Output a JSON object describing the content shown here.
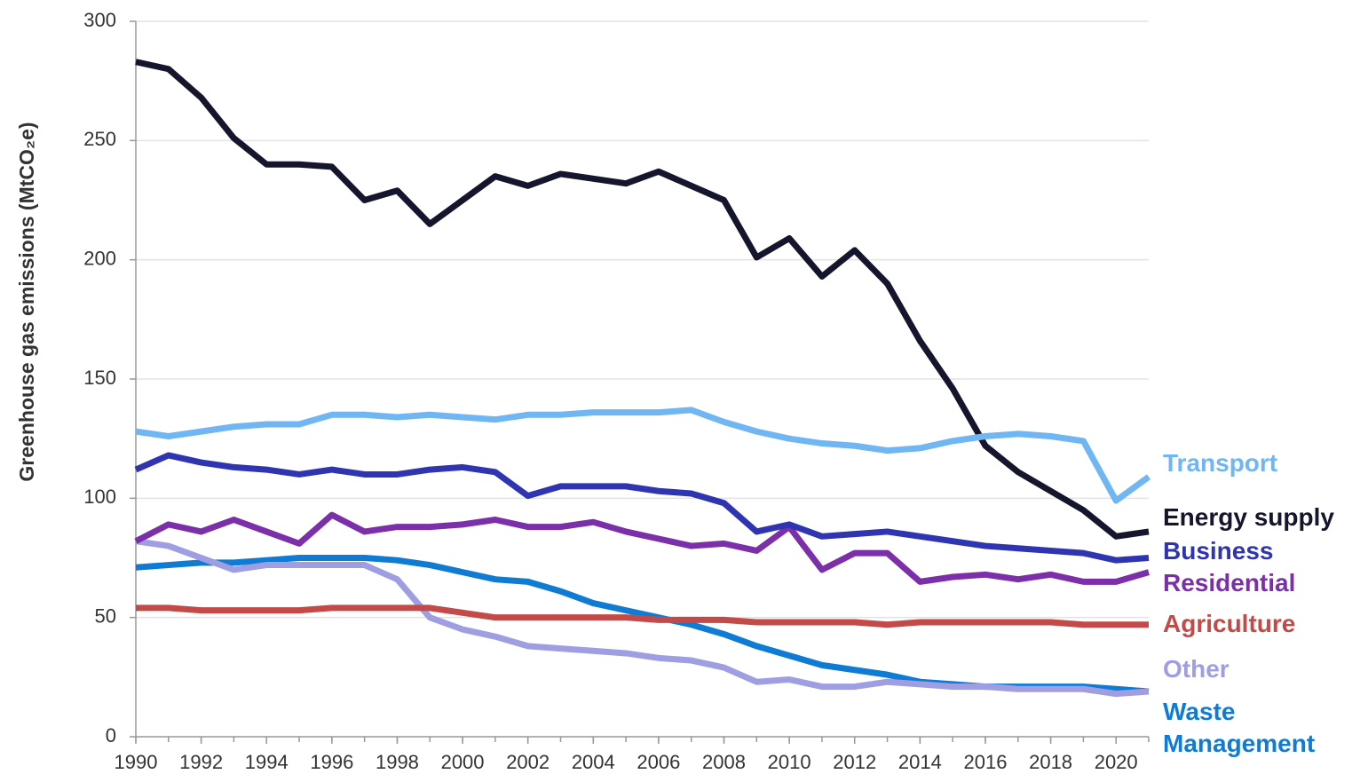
{
  "chart_data": {
    "type": "line",
    "y_label": "Greenhouse gas emissions (MtCO₂e)",
    "x": [
      1990,
      1991,
      1992,
      1993,
      1994,
      1995,
      1996,
      1997,
      1998,
      1999,
      2000,
      2001,
      2002,
      2003,
      2004,
      2005,
      2006,
      2007,
      2008,
      2009,
      2010,
      2011,
      2012,
      2013,
      2014,
      2015,
      2016,
      2017,
      2018,
      2019,
      2020,
      2021
    ],
    "xlim": [
      1990,
      2021
    ],
    "xticks": [
      1990,
      1992,
      1994,
      1996,
      1998,
      2000,
      2002,
      2004,
      2006,
      2008,
      2010,
      2012,
      2014,
      2016,
      2018,
      2020
    ],
    "ylim": [
      0,
      300
    ],
    "yticks": [
      0,
      50,
      100,
      150,
      200,
      250,
      300
    ],
    "grid": true,
    "series": [
      {
        "name": "Transport",
        "color": "#6fb6f3",
        "values": [
          128,
          126,
          128,
          130,
          131,
          131,
          135,
          135,
          134,
          135,
          134,
          133,
          135,
          135,
          136,
          136,
          136,
          137,
          132,
          128,
          125,
          123,
          122,
          120,
          121,
          124,
          126,
          127,
          126,
          124,
          99,
          109
        ]
      },
      {
        "name": "Energy supply",
        "color": "#15152e",
        "values": [
          283,
          280,
          268,
          251,
          240,
          240,
          239,
          225,
          229,
          215,
          225,
          235,
          231,
          236,
          234,
          232,
          237,
          231,
          225,
          201,
          209,
          193,
          204,
          190,
          166,
          146,
          122,
          111,
          103,
          95,
          84,
          86
        ]
      },
      {
        "name": "Business",
        "color": "#2f35b0",
        "values": [
          112,
          118,
          115,
          113,
          112,
          110,
          112,
          110,
          110,
          112,
          113,
          111,
          101,
          105,
          105,
          105,
          103,
          102,
          98,
          86,
          89,
          84,
          85,
          86,
          84,
          82,
          80,
          79,
          78,
          77,
          74,
          75
        ]
      },
      {
        "name": "Residential",
        "color": "#7b2fa8",
        "values": [
          82,
          89,
          86,
          91,
          86,
          81,
          93,
          86,
          88,
          88,
          89,
          91,
          88,
          88,
          90,
          86,
          83,
          80,
          81,
          78,
          88,
          70,
          77,
          77,
          65,
          67,
          68,
          66,
          68,
          65,
          65,
          69
        ]
      },
      {
        "name": "Agriculture",
        "color": "#c24a48",
        "values": [
          54,
          54,
          53,
          53,
          53,
          53,
          54,
          54,
          54,
          54,
          52,
          50,
          50,
          50,
          50,
          50,
          49,
          49,
          49,
          48,
          48,
          48,
          48,
          47,
          48,
          48,
          48,
          48,
          48,
          47,
          47,
          47
        ]
      },
      {
        "name": "Other",
        "color": "#a09ee3",
        "values": [
          82,
          80,
          75,
          70,
          72,
          72,
          72,
          72,
          66,
          50,
          45,
          42,
          38,
          37,
          36,
          35,
          33,
          32,
          29,
          23,
          24,
          21,
          21,
          23,
          22,
          21,
          21,
          20,
          20,
          20,
          18,
          19
        ]
      },
      {
        "name": "Waste Management",
        "color": "#0f7bd3",
        "values": [
          71,
          72,
          73,
          73,
          74,
          75,
          75,
          75,
          74,
          72,
          69,
          66,
          65,
          61,
          56,
          53,
          50,
          47,
          43,
          38,
          34,
          30,
          28,
          26,
          23,
          22,
          21,
          21,
          21,
          21,
          20,
          19
        ]
      }
    ]
  }
}
